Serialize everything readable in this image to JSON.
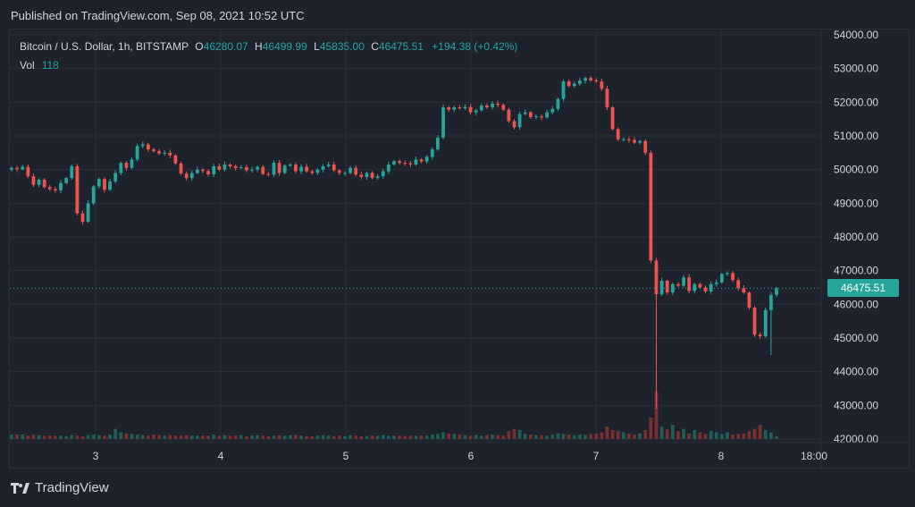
{
  "header": {
    "published": "Published on TradingView.com, Sep 08, 2021 10:52 UTC"
  },
  "legend": {
    "symbol": "Bitcoin / U.S. Dollar, 1h, BITSTAMP",
    "open_label": "O",
    "open": "46280.07",
    "high_label": "H",
    "high": "46499.99",
    "low_label": "L",
    "low": "45835.00",
    "close_label": "C",
    "close": "46475.51",
    "change": "+194.38 (+0.42%)",
    "vol_label": "Vol",
    "vol": "118"
  },
  "last_price_label": "46475.51",
  "footer": {
    "brand": "TradingView"
  },
  "colors": {
    "background": "#1e222d",
    "grid": "#2a2e39",
    "up": "#26a69a",
    "down": "#ef5350",
    "up_volume": "#1f5e57",
    "down_volume": "#7a2f33",
    "axis_text": "#d1d4dc"
  },
  "chart_data": {
    "type": "candlestick",
    "xlabel": "",
    "ylabel": "",
    "ylim": [
      42000,
      54000
    ],
    "y_ticks": [
      "54000.00",
      "53000.00",
      "52000.00",
      "51000.00",
      "50000.00",
      "49000.00",
      "48000.00",
      "47000.00",
      "46000.00",
      "45000.00",
      "44000.00",
      "43000.00",
      "42000.00"
    ],
    "x_ticks": [
      "3",
      "4",
      "5",
      "6",
      "7",
      "8",
      "18:00"
    ],
    "grid": true,
    "last_price": 46475.51,
    "closes": [
      50050,
      50010,
      50080,
      49800,
      49550,
      49700,
      49480,
      49420,
      49380,
      49600,
      49750,
      50100,
      48700,
      48450,
      49000,
      49500,
      49720,
      49400,
      49650,
      49900,
      50200,
      50050,
      50300,
      50700,
      50750,
      50600,
      50550,
      50480,
      50500,
      50420,
      50180,
      49880,
      49750,
      49900,
      50000,
      49960,
      49860,
      50100,
      50000,
      50150,
      50100,
      50050,
      50070,
      49980,
      50000,
      50080,
      49870,
      49850,
      50200,
      49900,
      50120,
      50150,
      49950,
      50080,
      49950,
      49900,
      50000,
      50100,
      50150,
      49980,
      49900,
      49900,
      50050,
      49850,
      49780,
      49900,
      49750,
      49800,
      49950,
      50150,
      50250,
      50200,
      50180,
      50150,
      50300,
      50240,
      50380,
      50600,
      50950,
      51850,
      51780,
      51850,
      51820,
      51860,
      51700,
      51760,
      51900,
      51850,
      51960,
      51920,
      51780,
      51440,
      51260,
      51650,
      51700,
      51560,
      51580,
      51550,
      51700,
      51800,
      52100,
      52620,
      52480,
      52550,
      52640,
      52720,
      52650,
      52620,
      52400,
      51850,
      51200,
      50900,
      50900,
      50880,
      50800,
      50850,
      50500,
      47300,
      46300,
      46700,
      46350,
      46600,
      46550,
      46800,
      46400,
      46600,
      46500,
      46380,
      46600,
      46650,
      46900,
      46930,
      46720,
      46480,
      46350,
      45900,
      45100,
      45050,
      45830,
      46280,
      46475
    ],
    "volumes": [
      8,
      8,
      8,
      6,
      8,
      7,
      6,
      6,
      6,
      6,
      5,
      7,
      6,
      5,
      7,
      8,
      7,
      6,
      8,
      18,
      12,
      10,
      9,
      8,
      7,
      6,
      8,
      7,
      6,
      7,
      6,
      6,
      7,
      6,
      6,
      6,
      6,
      8,
      6,
      7,
      6,
      6,
      7,
      5,
      6,
      7,
      6,
      5,
      6,
      7,
      6,
      7,
      7,
      6,
      5,
      5,
      6,
      7,
      6,
      5,
      6,
      5,
      7,
      6,
      5,
      5,
      6,
      6,
      7,
      6,
      6,
      6,
      5,
      6,
      6,
      6,
      6,
      8,
      9,
      12,
      10,
      9,
      8,
      7,
      6,
      7,
      6,
      7,
      8,
      7,
      6,
      14,
      18,
      16,
      9,
      8,
      7,
      7,
      6,
      8,
      10,
      9,
      8,
      7,
      8,
      7,
      9,
      10,
      12,
      22,
      16,
      14,
      12,
      10,
      8,
      10,
      16,
      38,
      85,
      22,
      17,
      25,
      14,
      18,
      10,
      16,
      12,
      9,
      14,
      12,
      9,
      12,
      8,
      9,
      10,
      14,
      18,
      25,
      16,
      12,
      5
    ]
  }
}
